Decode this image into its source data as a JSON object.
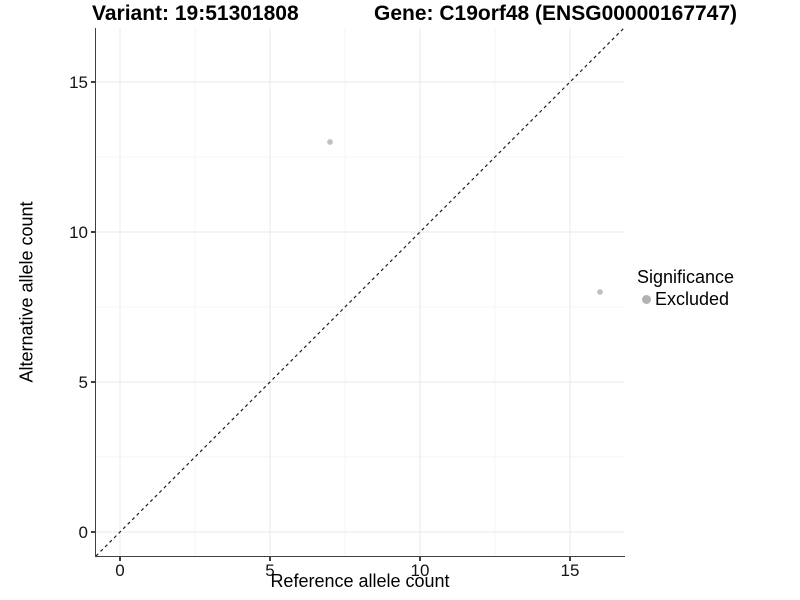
{
  "chart_data": {
    "type": "scatter",
    "title_left": "Variant: 19:51301808",
    "title_right": "Gene: C19orf48 (ENSG00000167747)",
    "xlabel": "Reference allele count",
    "ylabel": "Alternative allele count",
    "xlim": [
      -0.8,
      16.8
    ],
    "ylim": [
      -0.8,
      16.8
    ],
    "x_ticks": [
      0,
      5,
      10,
      15
    ],
    "y_ticks": [
      0,
      5,
      10,
      15
    ],
    "x_minor_gridlines": [
      2.5,
      7.5,
      12.5
    ],
    "y_minor_gridlines": [
      2.5,
      7.5,
      12.5
    ],
    "grid": "major+minor",
    "grid_major_color": "#e9e9e9",
    "grid_minor_color": "#f4f4f4",
    "axis_color": "#404040",
    "abline": {
      "slope": 1,
      "intercept": 0,
      "linetype": "dashed",
      "color": "#1f1f1f"
    },
    "series": [
      {
        "name": "Excluded",
        "color": "#c1c1c1",
        "points": [
          [
            7,
            13
          ],
          [
            16,
            8
          ]
        ]
      }
    ],
    "legend": {
      "title": "Significance",
      "position": "right",
      "entries": [
        {
          "label": "Excluded",
          "color": "#b2b2b2"
        }
      ]
    }
  }
}
